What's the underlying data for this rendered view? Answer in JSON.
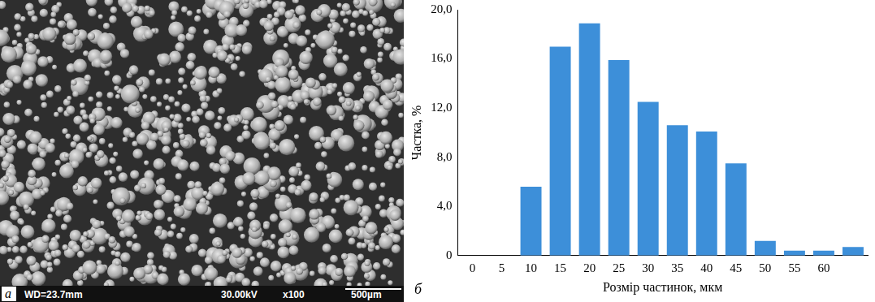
{
  "micrograph": {
    "panel_label": "а",
    "labels": [
      "WD=23.7mm",
      "30.00kV",
      "x100",
      "500µm"
    ]
  },
  "chart_data": {
    "type": "bar",
    "panel_label": "б",
    "x_label": "Розмір частинок, мкм",
    "y_label": "Частка, %",
    "categories": [
      "0",
      "5",
      "10",
      "15",
      "20",
      "25",
      "30",
      "35",
      "40",
      "45",
      "50",
      "55",
      "60",
      null
    ],
    "values": [
      null,
      null,
      5.6,
      17.0,
      18.9,
      15.9,
      12.5,
      10.6,
      10.1,
      7.5,
      1.2,
      0.4,
      0.4,
      0.7
    ],
    "color": "#3d8fd9",
    "ylim": [
      0,
      20
    ],
    "yticks": [
      0,
      {
        "value": 4,
        "label": "4,0"
      },
      {
        "value": 8,
        "label": "8,0"
      },
      {
        "value": 12,
        "label": "12,0"
      },
      {
        "value": 16,
        "label": "16,0"
      },
      {
        "value": 20,
        "label": "20,0"
      }
    ],
    "grid": false
  }
}
